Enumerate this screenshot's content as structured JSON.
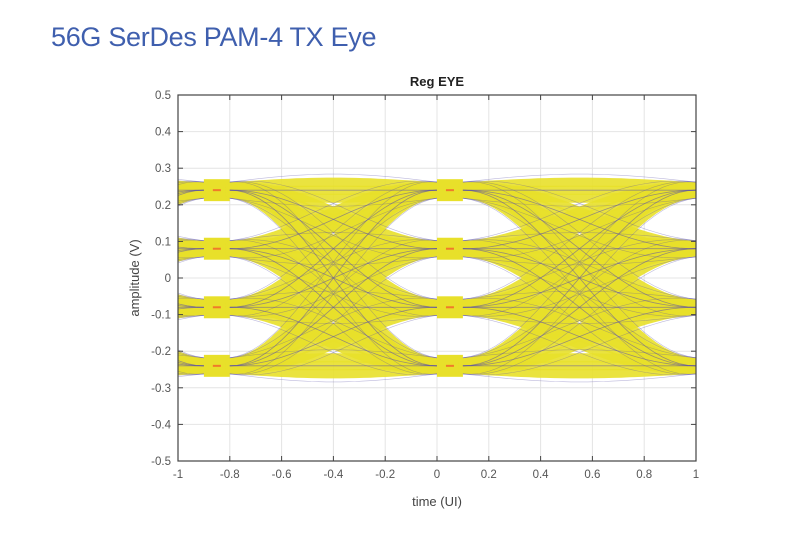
{
  "page": {
    "title": "56G SerDes PAM-4 TX Eye"
  },
  "chart_data": {
    "type": "eye-diagram",
    "title": "Reg EYE",
    "xlabel": "time (UI)",
    "ylabel": "amplitude (V)",
    "xlim": [
      -1,
      1
    ],
    "ylim": [
      -0.5,
      0.5
    ],
    "xticks": [
      "-1",
      "-0.8",
      "-0.6",
      "-0.4",
      "-0.2",
      "0",
      "0.2",
      "0.4",
      "0.6",
      "0.8",
      "1"
    ],
    "yticks": [
      "0.5",
      "0.4",
      "0.3",
      "0.2",
      "0.1",
      "0",
      "-0.1",
      "-0.2",
      "-0.3",
      "-0.4",
      "-0.5"
    ],
    "grid": true,
    "modulation": "PAM-4",
    "levels_v": [
      0.24,
      0.08,
      -0.08,
      -0.24
    ],
    "crossing_points_ui": [
      -0.9,
      0.0,
      1.0
    ],
    "eye_centers_ui": [
      -0.43,
      0.57
    ],
    "eye_openings_v": [
      0.16,
      0.0,
      -0.16
    ],
    "outer_envelope_v": [
      0.305,
      -0.305
    ],
    "colors": {
      "trace_fill": "#e8e02a",
      "trace_edge": "#5a4fa8",
      "density_hot": "#f07a2a",
      "background": "#ffffff",
      "title_text": "#3f5fae"
    }
  }
}
